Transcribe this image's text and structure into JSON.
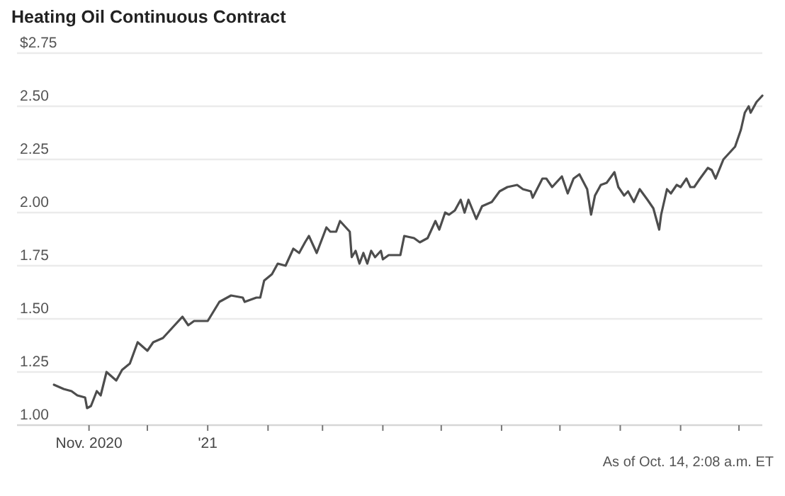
{
  "chart_data": {
    "type": "line",
    "title": "Heating Oil Continuous Contract",
    "annotations": [
      "As of Oct. 14, 2:08 a.m. ET"
    ],
    "x": [
      "2020-10-14",
      "2020-10-19",
      "2020-10-23",
      "2020-10-26",
      "2020-10-30",
      "2020-10-31",
      "2020-11-02",
      "2020-11-05",
      "2020-11-07",
      "2020-11-10",
      "2020-11-15",
      "2020-11-18",
      "2020-11-22",
      "2020-11-26",
      "2020-12-01",
      "2020-12-04",
      "2020-12-09",
      "2020-12-11",
      "2020-12-15",
      "2020-12-19",
      "2020-12-22",
      "2020-12-25",
      "2021-01-01",
      "2021-01-03",
      "2021-01-07",
      "2021-01-13",
      "2021-01-19",
      "2021-01-20",
      "2021-01-26",
      "2021-01-28",
      "2021-01-30",
      "2021-02-03",
      "2021-02-06",
      "2021-02-10",
      "2021-02-14",
      "2021-02-17",
      "2021-02-20",
      "2021-02-22",
      "2021-02-26",
      "2021-03-03",
      "2021-03-05",
      "2021-03-08",
      "2021-03-10",
      "2021-03-15",
      "2021-03-16",
      "2021-03-18",
      "2021-03-20",
      "2021-03-22",
      "2021-03-24",
      "2021-03-26",
      "2021-03-28",
      "2021-03-31",
      "2021-04-01",
      "2021-04-04",
      "2021-04-05",
      "2021-04-10",
      "2021-04-12",
      "2021-04-17",
      "2021-04-20",
      "2021-04-24",
      "2021-04-28",
      "2021-04-30",
      "2021-05-03",
      "2021-05-05",
      "2021-05-08",
      "2021-05-11",
      "2021-05-13",
      "2021-05-15",
      "2021-05-19",
      "2021-05-22",
      "2021-05-27",
      "2021-05-31",
      "2021-06-04",
      "2021-06-09",
      "2021-06-12",
      "2021-06-16",
      "2021-06-17",
      "2021-06-22",
      "2021-06-24",
      "2021-06-27",
      "2021-07-02",
      "2021-07-05",
      "2021-07-08",
      "2021-07-11",
      "2021-07-15",
      "2021-07-17",
      "2021-07-19",
      "2021-07-22",
      "2021-07-25",
      "2021-07-29",
      "2021-07-31",
      "2021-08-03",
      "2021-08-05",
      "2021-08-08",
      "2021-08-11",
      "2021-08-15",
      "2021-08-18",
      "2021-08-21",
      "2021-08-22",
      "2021-08-25",
      "2021-08-27",
      "2021-08-30",
      "2021-09-01",
      "2021-09-04",
      "2021-09-06",
      "2021-09-08",
      "2021-09-11",
      "2021-09-15",
      "2021-09-17",
      "2021-09-19",
      "2021-09-23",
      "2021-09-27",
      "2021-09-29",
      "2021-10-02",
      "2021-10-04",
      "2021-10-06",
      "2021-10-07",
      "2021-10-10",
      "2021-10-13"
    ],
    "series": [
      {
        "color": "#4d4d4d",
        "values": [
          1.19,
          1.17,
          1.16,
          1.14,
          1.13,
          1.08,
          1.09,
          1.16,
          1.14,
          1.25,
          1.21,
          1.26,
          1.29,
          1.39,
          1.35,
          1.39,
          1.41,
          1.43,
          1.47,
          1.51,
          1.47,
          1.49,
          1.49,
          1.52,
          1.58,
          1.61,
          1.6,
          1.58,
          1.6,
          1.6,
          1.68,
          1.71,
          1.76,
          1.75,
          1.83,
          1.81,
          1.86,
          1.89,
          1.81,
          1.93,
          1.91,
          1.91,
          1.96,
          1.91,
          1.79,
          1.82,
          1.76,
          1.81,
          1.76,
          1.82,
          1.79,
          1.82,
          1.78,
          1.8,
          1.8,
          1.8,
          1.89,
          1.88,
          1.86,
          1.88,
          1.96,
          1.92,
          2.0,
          1.99,
          2.01,
          2.06,
          2.0,
          2.06,
          1.97,
          2.03,
          2.05,
          2.1,
          2.12,
          2.13,
          2.11,
          2.1,
          2.07,
          2.16,
          2.16,
          2.12,
          2.17,
          2.09,
          2.16,
          2.18,
          2.11,
          1.99,
          2.08,
          2.13,
          2.14,
          2.19,
          2.12,
          2.08,
          2.1,
          2.05,
          2.11,
          2.06,
          2.02,
          1.92,
          1.99,
          2.11,
          2.09,
          2.13,
          2.12,
          2.16,
          2.12,
          2.12,
          2.16,
          2.21,
          2.2,
          2.16,
          2.25,
          2.29,
          2.31,
          2.39,
          2.47,
          2.5,
          2.47,
          2.52,
          2.55
        ]
      }
    ],
    "xlim": [
      "2020-09-25",
      "2021-10-13"
    ],
    "xticks": [
      {
        "value": "2020-11-01",
        "label": "Nov. 2020"
      },
      {
        "value": "2020-12-01",
        "label": null
      },
      {
        "value": "2021-01-01",
        "label": "'21"
      },
      {
        "value": "2021-02-01",
        "label": null
      },
      {
        "value": "2021-03-01",
        "label": null
      },
      {
        "value": "2021-04-01",
        "label": null
      },
      {
        "value": "2021-05-01",
        "label": null
      },
      {
        "value": "2021-06-01",
        "label": null
      },
      {
        "value": "2021-07-01",
        "label": null
      },
      {
        "value": "2021-08-01",
        "label": null
      },
      {
        "value": "2021-09-01",
        "label": null
      },
      {
        "value": "2021-10-01",
        "label": null
      }
    ],
    "ylim": [
      1.0,
      2.75
    ],
    "yticks": [
      {
        "value": 1.0,
        "label": "1.00"
      },
      {
        "value": 1.25,
        "label": "1.25"
      },
      {
        "value": 1.5,
        "label": "1.50"
      },
      {
        "value": 1.75,
        "label": "1.75"
      },
      {
        "value": 2.0,
        "label": "2.00"
      },
      {
        "value": 2.25,
        "label": "2.25"
      },
      {
        "value": 2.5,
        "label": "2.50"
      },
      {
        "value": 2.75,
        "label": "$2.75"
      }
    ],
    "grid": "y",
    "marker": "none",
    "line_style": "solid"
  }
}
